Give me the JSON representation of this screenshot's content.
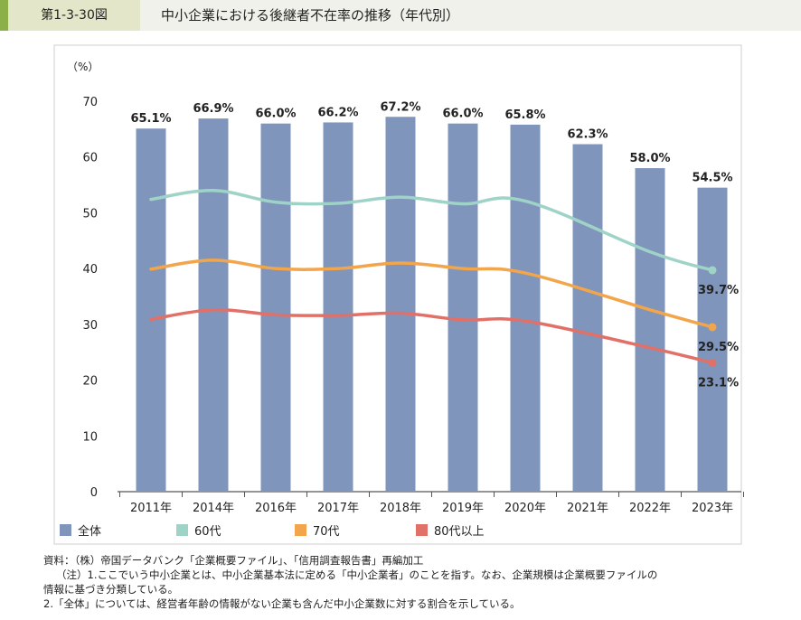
{
  "header": {
    "figure_number": "第1-3-30図",
    "title": "中小企業における後継者不在率の推移（年代別）"
  },
  "chart_data": {
    "type": "bar",
    "y_unit": "（%）",
    "categories": [
      "2011年",
      "2014年",
      "2016年",
      "2017年",
      "2018年",
      "2019年",
      "2020年",
      "2021年",
      "2022年",
      "2023年"
    ],
    "ylim": [
      0,
      70
    ],
    "yticks": [
      0,
      10,
      20,
      30,
      40,
      50,
      60,
      70
    ],
    "grid": false,
    "legend_position": "bottom-left",
    "series": [
      {
        "name": "全体",
        "kind": "bar",
        "color": "#7f95bb",
        "values": [
          65.1,
          66.9,
          66.0,
          66.2,
          67.2,
          66.0,
          65.8,
          62.3,
          58.0,
          54.5
        ],
        "labels": [
          "65.1%",
          "66.9%",
          "66.0%",
          "66.2%",
          "67.2%",
          "66.0%",
          "65.8%",
          "62.3%",
          "58.0%",
          "54.5%"
        ]
      },
      {
        "name": "60代",
        "kind": "line",
        "color": "#9fd3c7",
        "values": [
          52.4,
          54.0,
          51.9,
          51.7,
          52.8,
          51.6,
          52.1,
          null,
          43.0,
          39.7
        ],
        "end_label": "39.7%"
      },
      {
        "name": "70代",
        "kind": "line",
        "color": "#f2a54a",
        "values": [
          39.9,
          41.5,
          40.0,
          40.0,
          41.0,
          40.0,
          39.2,
          null,
          32.6,
          29.5
        ],
        "end_label": "29.5%"
      },
      {
        "name": "80代以上",
        "kind": "line",
        "color": "#e07068",
        "values": [
          30.9,
          32.6,
          31.7,
          31.6,
          32.0,
          30.8,
          30.6,
          null,
          25.8,
          23.1
        ],
        "end_label": "23.1%"
      }
    ]
  },
  "notes": [
    "資料：（株）帝国データバンク「企業概要ファイル」、「信用調査報告書」再編加工",
    "（注）1.ここでいう中小企業とは、中小企業基本法に定める「中小企業者」のことを指す。なお、企業規模は企業概要ファイルの",
    "情報に基づき分類している。",
    "2.「全体」については、経営者年齢の情報がない企業も含んだ中小企業数に対する割合を示している。"
  ]
}
